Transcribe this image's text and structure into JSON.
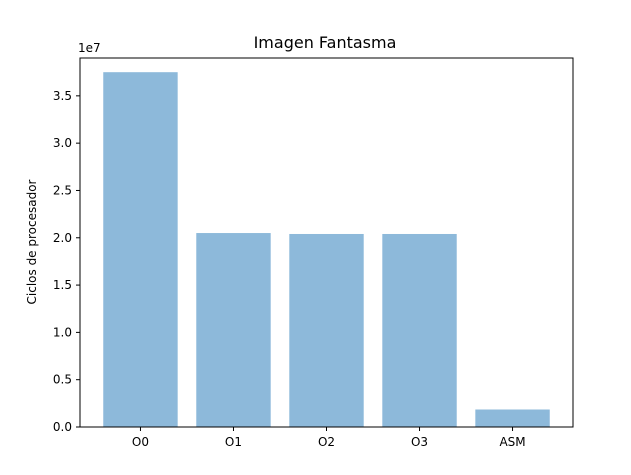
{
  "chart_data": {
    "type": "bar",
    "title": "Imagen Fantasma",
    "xlabel": "",
    "ylabel": "Ciclos de procesador",
    "y_offset_label": "1e7",
    "categories": [
      "O0",
      "O1",
      "O2",
      "O3",
      "ASM"
    ],
    "values": [
      37500000,
      20500000,
      20400000,
      20400000,
      1850000
    ],
    "ylim": [
      0,
      39000000
    ],
    "yticks": [
      0,
      5000000,
      10000000,
      15000000,
      20000000,
      25000000,
      30000000,
      35000000
    ],
    "ytick_labels": [
      "0.0",
      "0.5",
      "1.0",
      "1.5",
      "2.0",
      "2.5",
      "3.0",
      "3.5"
    ],
    "bar_color": "#8db9da",
    "grid": false,
    "legend": "none"
  }
}
